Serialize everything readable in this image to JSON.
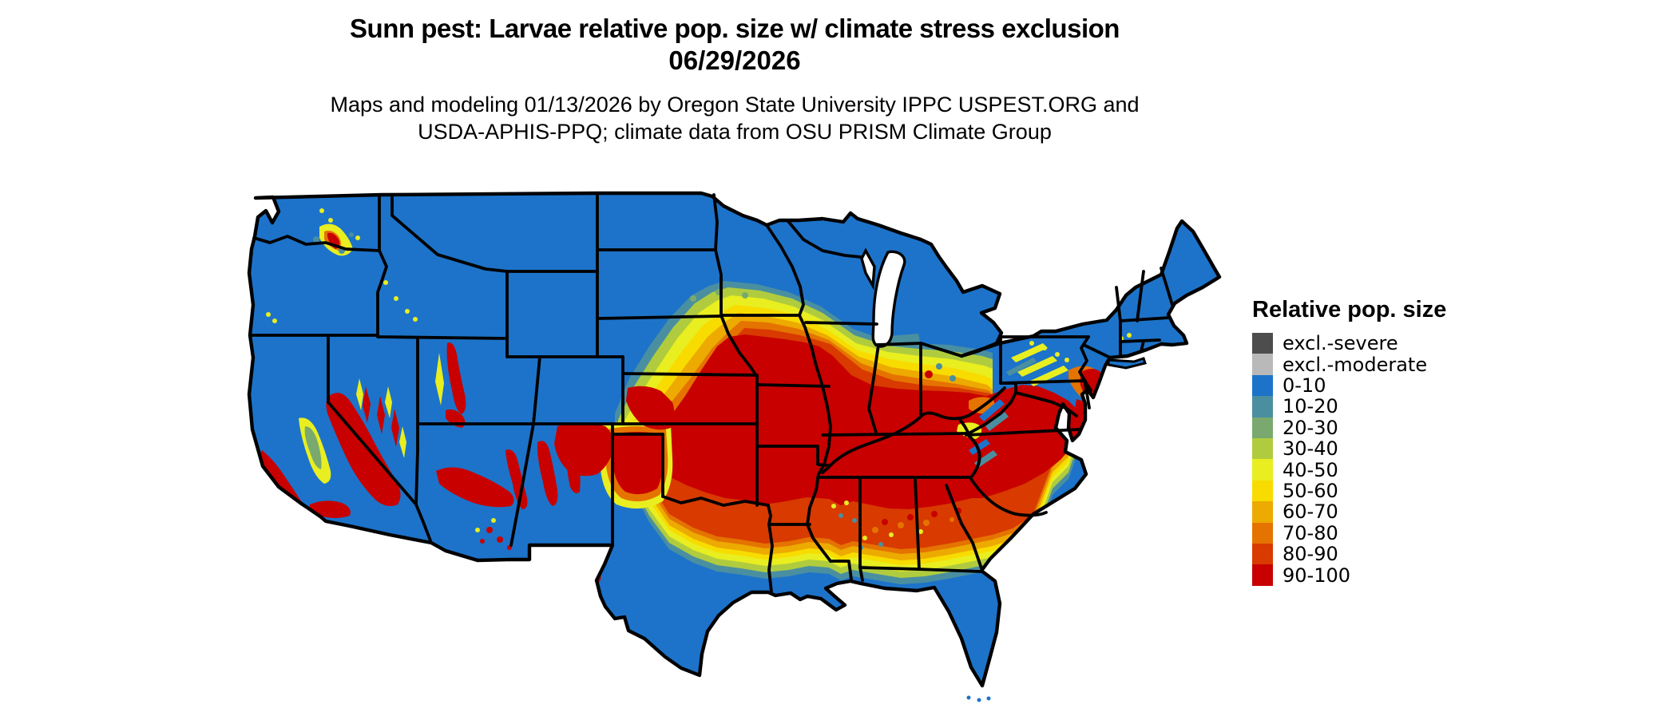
{
  "header": {
    "title_line1": "Sunn pest: Larvae relative pop. size w/ climate stress exclusion",
    "title_line2": "06/29/2026",
    "subtitle_line1": "Maps and modeling 01/13/2026 by Oregon State University IPPC USPEST.ORG and",
    "subtitle_line2": "USDA-APHIS-PPQ; climate data from OSU PRISM Climate Group"
  },
  "legend": {
    "title": "Relative pop. size",
    "items": [
      {
        "key": "exs",
        "label": "excl.-severe",
        "color": "#4d4d4d"
      },
      {
        "key": "exm",
        "label": "excl.-moderate",
        "color": "#b9b9b9"
      },
      {
        "key": "v0",
        "label": "0-10",
        "color": "#1d73c9"
      },
      {
        "key": "v10",
        "label": "10-20",
        "color": "#4a8fa0"
      },
      {
        "key": "v20",
        "label": "20-30",
        "color": "#79a96e"
      },
      {
        "key": "v30",
        "label": "30-40",
        "color": "#b0cc3e"
      },
      {
        "key": "v40",
        "label": "40-50",
        "color": "#e8ee20"
      },
      {
        "key": "v50",
        "label": "50-60",
        "color": "#f8dc00"
      },
      {
        "key": "v60",
        "label": "60-70",
        "color": "#edaa00"
      },
      {
        "key": "v70",
        "label": "70-80",
        "color": "#e57300"
      },
      {
        "key": "v80",
        "label": "80-90",
        "color": "#d83a00"
      },
      {
        "key": "v90",
        "label": "90-100",
        "color": "#c80000"
      }
    ]
  },
  "map": {
    "region": "Contiguous United States",
    "type": "choropleth raster with state borders",
    "base_class": "0-10",
    "high_population_areas": "central US band (Kansas–Missouri–Kentucky–Tennessee–Virginia), California Central Valley/Sierra, southwestern mountain ranges",
    "low_population_areas": "northern states, Texas, Gulf coast, Florida, New England"
  }
}
